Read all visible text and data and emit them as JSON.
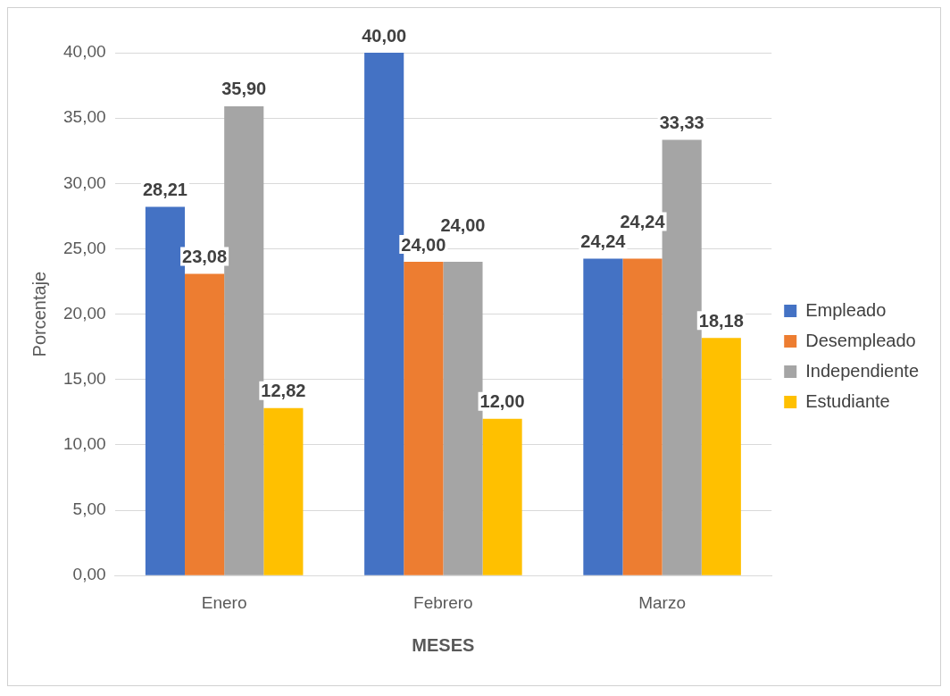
{
  "chart_data": {
    "type": "bar",
    "xlabel": "MESES",
    "ylabel": "Porcentaje",
    "categories": [
      "Enero",
      "Febrero",
      "Marzo"
    ],
    "series": [
      {
        "name": "Empleado",
        "color": "#4472c4",
        "values": [
          28.21,
          40.0,
          24.24
        ],
        "value_labels": [
          "28,21",
          "40,00",
          "24,24"
        ]
      },
      {
        "name": "Desempleado",
        "color": "#ed7d31",
        "values": [
          23.08,
          24.0,
          24.24
        ],
        "value_labels": [
          "23,08",
          "24,00",
          "24,24"
        ]
      },
      {
        "name": "Independiente",
        "color": "#a5a5a5",
        "values": [
          35.9,
          24.0,
          33.33
        ],
        "value_labels": [
          "35,90",
          "24,00",
          "33,33"
        ]
      },
      {
        "name": "Estudiante",
        "color": "#ffc000",
        "values": [
          12.82,
          12.0,
          18.18
        ],
        "value_labels": [
          "12,82",
          "12,00",
          "18,18"
        ]
      }
    ],
    "ylim": [
      0,
      40
    ],
    "yticks": [
      {
        "value": 0,
        "label": "0,00"
      },
      {
        "value": 5,
        "label": "5,00"
      },
      {
        "value": 10,
        "label": "10,00"
      },
      {
        "value": 15,
        "label": "15,00"
      },
      {
        "value": 20,
        "label": "20,00"
      },
      {
        "value": 25,
        "label": "25,00"
      },
      {
        "value": 30,
        "label": "30,00"
      },
      {
        "value": 35,
        "label": "35,00"
      },
      {
        "value": 40,
        "label": "40,00"
      }
    ],
    "grid": "y",
    "legend": "right"
  }
}
